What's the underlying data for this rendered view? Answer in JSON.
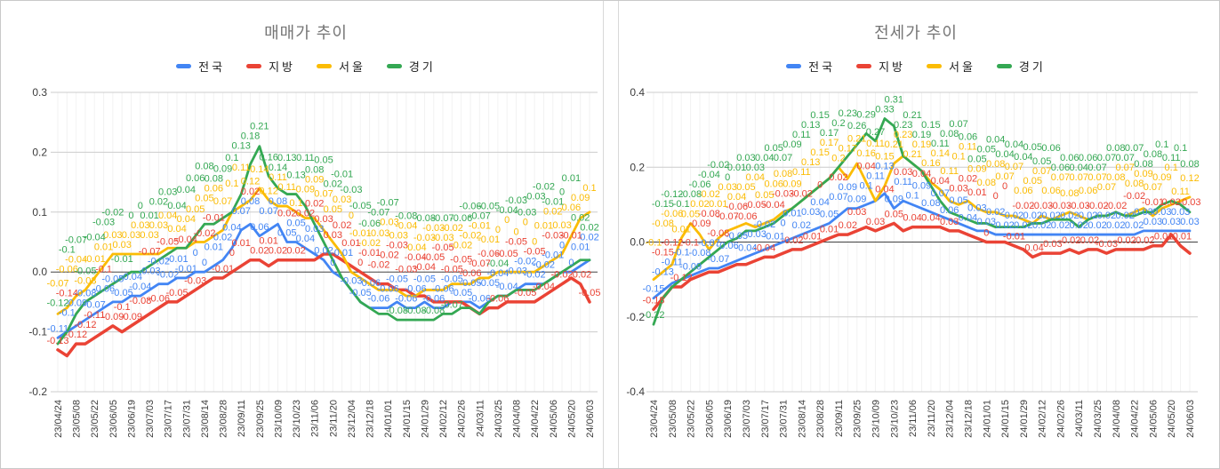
{
  "page": {
    "background": "#ffffff",
    "border_color": "#c9c9c9"
  },
  "colors": {
    "national": "#4285F4",
    "provincial": "#EA4335",
    "seoul": "#FBBC04",
    "gyeonggi": "#34A853",
    "grid_line": "#cccccc",
    "minor_grid_line": "#f2f2f2",
    "zero_line": "#424242",
    "title_text": "#757575",
    "axis_text": "#3c3c3c"
  },
  "panels": [
    {
      "title": "매매가 추이",
      "chart_data": {
        "type": "line",
        "legend_position": "top",
        "grid": true,
        "annotations": "value-label-on-every-point",
        "n_points": 59,
        "points_per_tick": 2,
        "x_tick_labels": [
          "23/04/24",
          "23/05/08",
          "23/05/22",
          "23/06/05",
          "23/06/19",
          "23/07/03",
          "23/07/17",
          "23/07/31",
          "23/08/14",
          "23/08/28",
          "23/09/11",
          "23/09/25",
          "23/10/09",
          "23/10/23",
          "23/11/06",
          "23/11/20",
          "23/12/04",
          "23/12/18",
          "24/01/01",
          "24/01/15",
          "24/01/29",
          "24/02/12",
          "24/02/26",
          "24/03/11",
          "24/03/25",
          "24/04/08",
          "24/04/22",
          "24/05/06",
          "24/05/20",
          "24/06/03"
        ],
        "ylim": [
          -0.2,
          0.3
        ],
        "yticks": [
          0.3,
          0.2,
          0.1,
          0.0,
          -0.1,
          -0.2
        ],
        "series": [
          {
            "name": "전국",
            "color": "#4285F4",
            "values": [
              -0.11,
              -0.1,
              -0.09,
              -0.08,
              -0.07,
              -0.06,
              -0.05,
              -0.05,
              -0.04,
              -0.04,
              -0.03,
              -0.02,
              -0.02,
              -0.01,
              -0.01,
              0.0,
              0.0,
              0.01,
              0.02,
              0.04,
              0.07,
              0.08,
              0.06,
              0.07,
              0.08,
              0.05,
              0.05,
              0.04,
              0.03,
              0.02,
              0.0,
              -0.01,
              -0.03,
              -0.05,
              -0.06,
              -0.06,
              -0.06,
              -0.05,
              -0.06,
              -0.06,
              -0.05,
              -0.06,
              -0.06,
              -0.05,
              -0.05,
              -0.05,
              -0.06,
              -0.05,
              -0.04,
              -0.04,
              -0.03,
              -0.02,
              -0.02,
              -0.02,
              -0.01,
              0.0,
              0.0,
              0.01,
              0.02
            ]
          },
          {
            "name": "지방",
            "color": "#EA4335",
            "values": [
              -0.13,
              -0.14,
              -0.12,
              -0.12,
              -0.11,
              -0.1,
              -0.09,
              -0.1,
              -0.09,
              -0.08,
              -0.07,
              -0.06,
              -0.05,
              -0.05,
              -0.04,
              -0.03,
              -0.02,
              -0.01,
              -0.01,
              0.0,
              0.01,
              0.02,
              0.02,
              0.01,
              0.02,
              0.02,
              0.02,
              0.02,
              0.02,
              0.03,
              0.03,
              0.02,
              0.01,
              0.0,
              -0.01,
              -0.02,
              -0.02,
              -0.03,
              -0.03,
              -0.04,
              -0.04,
              -0.05,
              -0.05,
              -0.05,
              -0.05,
              -0.06,
              -0.07,
              -0.06,
              -0.06,
              -0.05,
              -0.05,
              -0.05,
              -0.05,
              -0.04,
              -0.03,
              -0.02,
              -0.01,
              -0.02,
              -0.05
            ]
          },
          {
            "name": "서울",
            "color": "#FBBC04",
            "values": [
              -0.07,
              -0.06,
              -0.04,
              -0.03,
              -0.01,
              0.01,
              0.03,
              0.03,
              0.03,
              0.03,
              0.03,
              0.03,
              0.04,
              0.04,
              0.04,
              0.05,
              0.05,
              0.06,
              0.07,
              0.1,
              0.11,
              0.12,
              0.14,
              0.12,
              0.11,
              0.11,
              0.1,
              0.09,
              0.09,
              0.07,
              0.05,
              0.03,
              0.0,
              -0.01,
              -0.02,
              -0.03,
              -0.03,
              -0.03,
              -0.04,
              -0.04,
              -0.03,
              -0.03,
              -0.03,
              -0.02,
              -0.02,
              -0.02,
              -0.01,
              -0.01,
              0.0,
              0.0,
              0.0,
              0.0,
              0.0,
              0.01,
              0.02,
              0.03,
              0.06,
              0.09,
              0.1
            ]
          },
          {
            "name": "경기",
            "color": "#34A853",
            "values": [
              -0.12,
              -0.1,
              -0.07,
              -0.05,
              -0.04,
              -0.03,
              -0.02,
              -0.01,
              0.0,
              0.0,
              0.01,
              0.02,
              0.03,
              0.04,
              0.04,
              0.06,
              0.08,
              0.08,
              0.09,
              0.1,
              0.13,
              0.18,
              0.21,
              0.16,
              0.14,
              0.13,
              0.13,
              0.11,
              0.08,
              0.05,
              0.02,
              -0.01,
              -0.03,
              -0.05,
              -0.06,
              -0.07,
              -0.07,
              -0.08,
              -0.08,
              -0.08,
              -0.08,
              -0.08,
              -0.07,
              -0.07,
              -0.06,
              -0.06,
              -0.07,
              -0.05,
              -0.04,
              -0.04,
              -0.03,
              -0.03,
              -0.03,
              -0.02,
              -0.01,
              0.0,
              0.01,
              0.02,
              0.02
            ]
          }
        ]
      }
    },
    {
      "title": "전세가 추이",
      "chart_data": {
        "type": "line",
        "legend_position": "top",
        "grid": true,
        "annotations": "value-label-on-every-point",
        "n_points": 59,
        "points_per_tick": 2,
        "x_tick_labels": [
          "23/04/24",
          "23/05/08",
          "23/05/22",
          "23/06/05",
          "23/06/19",
          "23/07/03",
          "23/07/17",
          "23/07/31",
          "23/08/14",
          "23/08/28",
          "23/09/11",
          "23/09/25",
          "23/10/09",
          "23/10/23",
          "23/11/06",
          "23/11/20",
          "23/12/04",
          "23/12/18",
          "24/01/01",
          "24/01/15",
          "24/01/29",
          "24/02/12",
          "24/02/26",
          "24/03/11",
          "24/03/25",
          "24/04/08",
          "24/04/22",
          "24/05/06",
          "24/05/20",
          "24/06/03"
        ],
        "ylim": [
          -0.4,
          0.4
        ],
        "yticks": [
          0.4,
          0.2,
          0.0,
          -0.2,
          -0.4
        ],
        "series": [
          {
            "name": "전국",
            "color": "#4285F4",
            "values": [
              -0.15,
              -0.13,
              -0.11,
              -0.1,
              -0.09,
              -0.08,
              -0.07,
              -0.07,
              -0.06,
              -0.05,
              -0.04,
              -0.03,
              -0.02,
              -0.01,
              0.0,
              0.01,
              0.02,
              0.03,
              0.04,
              0.05,
              0.07,
              0.09,
              0.09,
              0.1,
              0.11,
              0.13,
              0.09,
              0.11,
              0.1,
              0.09,
              0.08,
              0.07,
              0.06,
              0.05,
              0.04,
              0.03,
              0.03,
              0.02,
              0.02,
              0.02,
              0.02,
              0.02,
              0.02,
              0.02,
              0.02,
              0.02,
              0.02,
              0.02,
              0.02,
              0.02,
              0.02,
              0.02,
              0.02,
              0.03,
              0.03,
              0.03,
              0.03,
              0.03,
              0.03
            ]
          },
          {
            "name": "지방",
            "color": "#EA4335",
            "values": [
              -0.18,
              -0.15,
              -0.12,
              -0.12,
              -0.1,
              -0.09,
              -0.08,
              -0.08,
              -0.07,
              -0.06,
              -0.06,
              -0.05,
              -0.04,
              -0.04,
              -0.03,
              -0.02,
              -0.02,
              -0.01,
              0.0,
              0.01,
              0.02,
              0.02,
              0.03,
              0.04,
              0.03,
              0.04,
              0.05,
              0.03,
              0.04,
              0.04,
              0.04,
              0.04,
              0.03,
              0.03,
              0.02,
              0.01,
              0.0,
              0.0,
              0.0,
              -0.01,
              -0.02,
              -0.04,
              -0.03,
              -0.03,
              -0.03,
              -0.02,
              -0.03,
              -0.02,
              -0.02,
              -0.03,
              -0.02,
              -0.02,
              -0.02,
              -0.02,
              -0.01,
              -0.01,
              0.02,
              -0.01,
              -0.03
            ]
          },
          {
            "name": "서울",
            "color": "#FBBC04",
            "values": [
              -0.1,
              -0.08,
              -0.06,
              0.01,
              0.05,
              0.02,
              -0.02,
              0.01,
              0.03,
              0.04,
              0.05,
              0.04,
              0.05,
              0.06,
              0.08,
              0.09,
              0.11,
              0.13,
              0.15,
              0.17,
              0.2,
              0.17,
              0.21,
              0.16,
              0.11,
              0.15,
              0.21,
              0.23,
              0.21,
              0.19,
              0.16,
              0.14,
              0.11,
              0.1,
              0.11,
              0.09,
              0.08,
              0.08,
              0.07,
              0.07,
              0.06,
              0.05,
              0.07,
              0.06,
              0.07,
              0.08,
              0.07,
              0.06,
              0.07,
              0.07,
              0.08,
              0.07,
              0.08,
              0.09,
              0.07,
              0.09,
              0.1,
              0.11,
              0.12
            ]
          },
          {
            "name": "경기",
            "color": "#34A853",
            "values": [
              -0.22,
              -0.15,
              -0.12,
              -0.1,
              -0.08,
              -0.06,
              -0.04,
              -0.02,
              0.0,
              0.01,
              0.03,
              0.03,
              0.04,
              0.05,
              0.07,
              0.09,
              0.11,
              0.13,
              0.15,
              0.17,
              0.2,
              0.23,
              0.26,
              0.29,
              0.27,
              0.33,
              0.31,
              0.23,
              0.21,
              0.19,
              0.15,
              0.11,
              0.08,
              0.07,
              0.06,
              0.05,
              0.05,
              0.04,
              0.04,
              0.04,
              0.04,
              0.05,
              0.05,
              0.06,
              0.06,
              0.06,
              0.04,
              0.06,
              0.07,
              0.07,
              0.08,
              0.07,
              0.07,
              0.08,
              0.08,
              0.1,
              0.11,
              0.1,
              0.08
            ]
          }
        ]
      }
    }
  ]
}
